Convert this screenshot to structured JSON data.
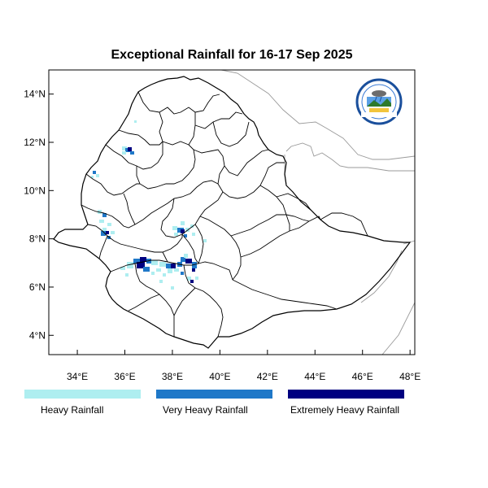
{
  "map": {
    "title": "Exceptional Rainfall for 16-17 Sep 2025",
    "lon_ticks": [
      "34°E",
      "36°E",
      "38°E",
      "40°E",
      "42°E",
      "44°E",
      "46°E",
      "48°E"
    ],
    "lat_ticks": [
      "14°N",
      "12°N",
      "10°N",
      "8°N",
      "6°N",
      "4°N"
    ],
    "lon_range": [
      32.8,
      48.2
    ],
    "lat_range": [
      3.2,
      15.0
    ],
    "logo_name": "meteorology-agency-logo"
  },
  "legend": [
    {
      "label": "Heavy Rainfall",
      "color": "#aeeef0"
    },
    {
      "label": "Very Heavy Rainfall",
      "color": "#1f78c8"
    },
    {
      "label": "Extremely Heavy Rainfall",
      "color": "#000080"
    }
  ],
  "colors": {
    "heavy": "#aeeef0",
    "very_heavy": "#1f78c8",
    "extreme": "#000080"
  }
}
